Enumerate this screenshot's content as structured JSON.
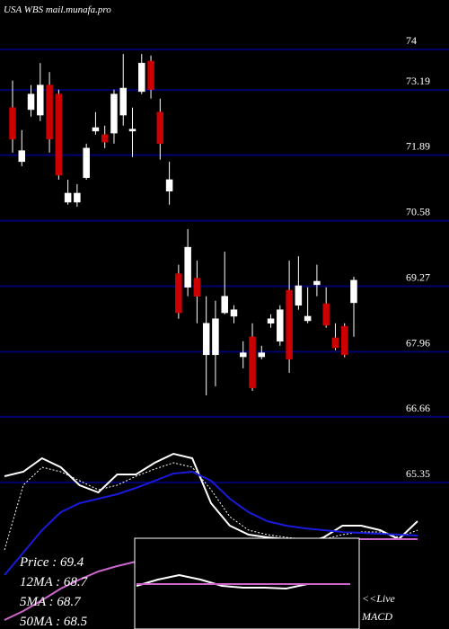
{
  "header": "USA WBS mail.munafa.pro",
  "chart_data": {
    "type": "candlestick",
    "ylim": [
      62.42,
      74.99
    ],
    "yticks": [
      74,
      73.19,
      71.89,
      70.58,
      69.27,
      67.96,
      66.66,
      65.35
    ],
    "grid": true,
    "grid_color": "#000070",
    "up_color": "#ffffff",
    "down_color": "#cc0000",
    "candles": [
      {
        "open": 72.84,
        "high": 73.38,
        "low": 71.94,
        "close": 72.21
      },
      {
        "open": 71.76,
        "high": 72.39,
        "low": 71.67,
        "close": 71.98
      },
      {
        "open": 72.8,
        "high": 73.29,
        "low": 72.66,
        "close": 73.11
      },
      {
        "open": 72.69,
        "high": 73.73,
        "low": 72.57,
        "close": 73.29
      },
      {
        "open": 73.29,
        "high": 73.55,
        "low": 71.94,
        "close": 72.21
      },
      {
        "open": 73.11,
        "high": 73.2,
        "low": 71.4,
        "close": 71.49
      },
      {
        "open": 70.95,
        "high": 71.4,
        "low": 70.9,
        "close": 71.13
      },
      {
        "open": 70.95,
        "high": 71.31,
        "low": 70.86,
        "close": 71.13
      },
      {
        "open": 71.44,
        "high": 72.12,
        "low": 71.4,
        "close": 72.03
      },
      {
        "open": 72.37,
        "high": 72.75,
        "low": 72.3,
        "close": 72.44
      },
      {
        "open": 72.3,
        "high": 72.48,
        "low": 72.03,
        "close": 72.15
      },
      {
        "open": 72.33,
        "high": 73.2,
        "low": 72.12,
        "close": 73.11
      },
      {
        "open": 72.69,
        "high": 73.91,
        "low": 72.48,
        "close": 73.23
      },
      {
        "open": 72.37,
        "high": 72.84,
        "low": 71.85,
        "close": 72.41
      },
      {
        "open": 73.16,
        "high": 73.91,
        "low": 73.11,
        "close": 73.73
      },
      {
        "open": 73.77,
        "high": 73.88,
        "low": 73.02,
        "close": 73.2
      },
      {
        "open": 72.75,
        "high": 73.02,
        "low": 71.8,
        "close": 72.12
      },
      {
        "open": 71.17,
        "high": 71.76,
        "low": 70.9,
        "close": 71.4
      },
      {
        "open": 69.52,
        "high": 69.7,
        "low": 68.62,
        "close": 68.74
      },
      {
        "open": 69.25,
        "high": 70.41,
        "low": 69.07,
        "close": 70.05
      },
      {
        "open": 69.43,
        "high": 69.78,
        "low": 68.53,
        "close": 69.07
      },
      {
        "open": 67.9,
        "high": 69.07,
        "low": 67.09,
        "close": 68.53
      },
      {
        "open": 67.9,
        "high": 68.98,
        "low": 67.27,
        "close": 68.62
      },
      {
        "open": 68.74,
        "high": 69.96,
        "low": 68.71,
        "close": 69.07
      },
      {
        "open": 68.67,
        "high": 68.89,
        "low": 68.53,
        "close": 68.8
      },
      {
        "open": 67.86,
        "high": 68.17,
        "low": 67.63,
        "close": 67.94
      },
      {
        "open": 68.26,
        "high": 68.53,
        "low": 67.18,
        "close": 67.24
      },
      {
        "open": 67.86,
        "high": 68.08,
        "low": 67.81,
        "close": 67.94
      },
      {
        "open": 68.53,
        "high": 68.71,
        "low": 68.44,
        "close": 68.62
      },
      {
        "open": 68.17,
        "high": 68.89,
        "low": 68.08,
        "close": 68.8
      },
      {
        "open": 69.19,
        "high": 69.78,
        "low": 67.54,
        "close": 67.81
      },
      {
        "open": 68.89,
        "high": 69.87,
        "low": 68.8,
        "close": 69.28
      },
      {
        "open": 68.58,
        "high": 69.25,
        "low": 68.53,
        "close": 68.67
      },
      {
        "open": 69.3,
        "high": 69.7,
        "low": 69.07,
        "close": 69.37
      },
      {
        "open": 68.92,
        "high": 69.25,
        "low": 68.44,
        "close": 68.49
      },
      {
        "open": 68.24,
        "high": 68.53,
        "low": 67.99,
        "close": 68.04
      },
      {
        "open": 68.47,
        "high": 68.53,
        "low": 67.85,
        "close": 67.9
      },
      {
        "open": 68.94,
        "high": 69.46,
        "low": 68.26,
        "close": 69.39
      }
    ],
    "y2lim": [
      63,
      74
    ],
    "overlays": [
      {
        "color": "#ffffff",
        "style": "solid",
        "axis": "y2",
        "values": [
          71.5,
          71.75,
          72.5,
          72.0,
          71.0,
          70.6,
          71.6,
          71.6,
          72.25,
          72.75,
          72.5,
          70.0,
          68.75,
          68.25,
          68.1,
          68.0,
          67.75,
          68.1,
          68.75,
          68.75,
          68.5,
          68.0,
          69.0
        ]
      },
      {
        "color": "#ffffff",
        "style": "dotted",
        "axis": "y2",
        "values": [
          67.4,
          71.0,
          72.0,
          71.75,
          71.25,
          70.75,
          71.0,
          71.5,
          71.9,
          72.25,
          72.0,
          70.75,
          69.25,
          68.5,
          68.25,
          68.1,
          68.0,
          68.0,
          68.25,
          68.4,
          68.4,
          68.1,
          68.5
        ]
      },
      {
        "color": "#1a1adc",
        "style": "solid",
        "axis": "y2",
        "values": [
          66.0,
          67.25,
          68.5,
          69.5,
          70.0,
          70.25,
          70.5,
          70.85,
          71.25,
          71.65,
          71.75,
          71.25,
          70.25,
          69.5,
          69.0,
          68.75,
          68.6,
          68.5,
          68.4,
          68.35,
          68.3,
          68.25,
          68.2
        ]
      },
      {
        "color": "#cc66cc",
        "style": "solid",
        "axis": "y2",
        "values": [
          63.5,
          64.0,
          64.6,
          65.25,
          65.75,
          66.2,
          66.5,
          66.75,
          67.0,
          67.25,
          67.4,
          67.6,
          67.75,
          67.85,
          67.9,
          67.95,
          68.0,
          68.0,
          68.0,
          68.0,
          68.0,
          68.0,
          68.0
        ]
      }
    ],
    "legend": [
      "Price   : 69.4",
      "12MA : 68.7",
      "5MA : 68.7",
      "50MA : 68.5"
    ],
    "macd": {
      "ylim": [
        -2.5,
        2.5
      ],
      "labels": [
        "<<Live",
        "MACD"
      ],
      "series": [
        {
          "color": "#ffffff",
          "values": [
            -0.1,
            0.25,
            0.5,
            0.25,
            -0.1,
            -0.2,
            -0.2,
            -0.25,
            0,
            0,
            0
          ]
        },
        {
          "color": "#cc66cc",
          "values": [
            0,
            0
          ]
        }
      ]
    }
  }
}
